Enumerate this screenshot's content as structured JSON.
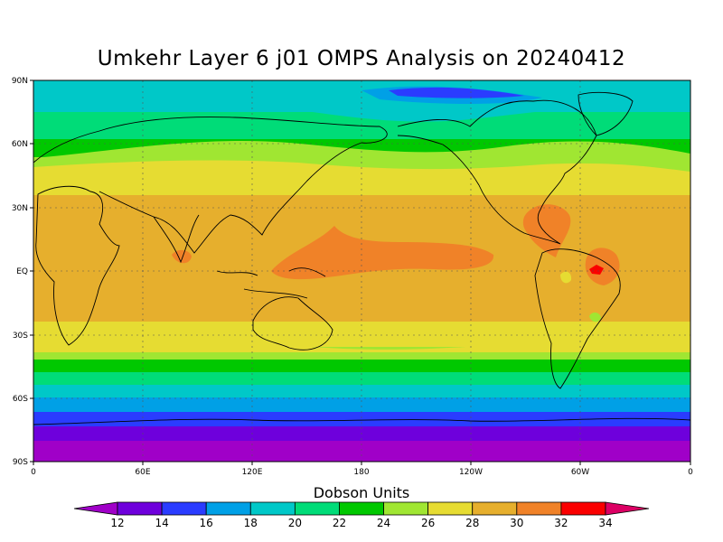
{
  "title": "Umkehr Layer 6 j01 OMPS Analysis on 20240412",
  "map": {
    "lat_labels": [
      "90N",
      "60N",
      "30N",
      "EQ",
      "30S",
      "60S",
      "90S"
    ],
    "lon_labels": [
      "0",
      "60E",
      "120E",
      "180",
      "120W",
      "60W",
      "0"
    ]
  },
  "colorbar": {
    "title": "Dobson Units",
    "levels": [
      "12",
      "14",
      "16",
      "18",
      "20",
      "22",
      "24",
      "26",
      "28",
      "30",
      "32",
      "34"
    ],
    "colors": [
      "#a000c8",
      "#6e00dc",
      "#2a3cff",
      "#00a0e6",
      "#00c8c8",
      "#00dc78",
      "#00c800",
      "#a0e632",
      "#e6dc32",
      "#e6af2d",
      "#f08228",
      "#fa0000",
      "#dc0064"
    ]
  }
}
